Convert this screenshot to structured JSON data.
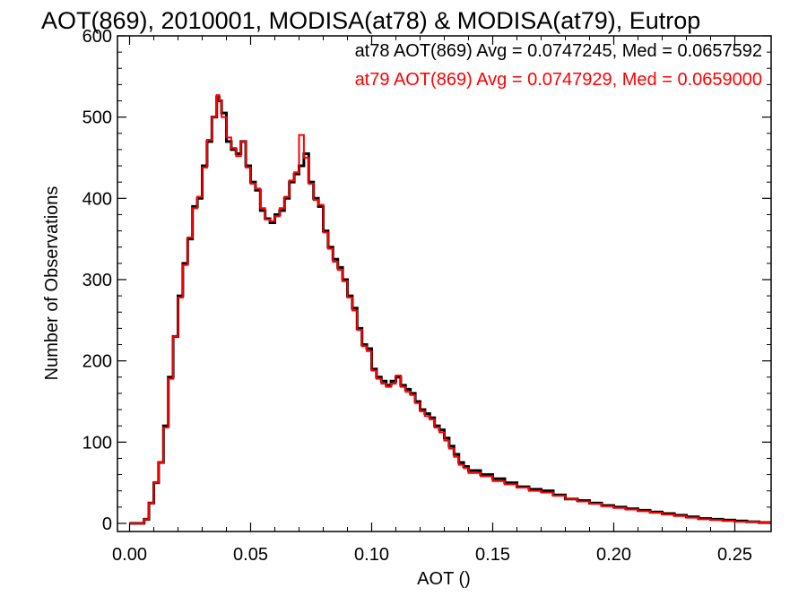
{
  "chart_data": {
    "type": "line",
    "title": "AOT(869), 2010001, MODISA(at78) & MODISA(at79), Eutrop",
    "xlabel": "AOT ()",
    "ylabel": "Number of Observations",
    "xlim": [
      -0.005,
      0.265
    ],
    "ylim": [
      -10,
      600
    ],
    "x_ticks": [
      "0.00",
      "0.05",
      "0.10",
      "0.15",
      "0.20",
      "0.25"
    ],
    "y_ticks": [
      "0",
      "100",
      "200",
      "300",
      "400",
      "500",
      "600"
    ],
    "step": "histogram",
    "annotations": [
      {
        "text": "at78 AOT(869) Avg = 0.0747245, Med = 0.0657592",
        "color": "#000000"
      },
      {
        "text": "at79 AOT(869) Avg = 0.0747929, Med = 0.0659000",
        "color": "#ff0000"
      }
    ],
    "series": [
      {
        "color": "#000000",
        "x": [
          0.0,
          0.005,
          0.006,
          0.008,
          0.01,
          0.012,
          0.014,
          0.016,
          0.018,
          0.02,
          0.022,
          0.024,
          0.026,
          0.028,
          0.03,
          0.032,
          0.034,
          0.036,
          0.037,
          0.038,
          0.04,
          0.042,
          0.044,
          0.046,
          0.048,
          0.05,
          0.052,
          0.054,
          0.056,
          0.058,
          0.06,
          0.062,
          0.064,
          0.066,
          0.068,
          0.07,
          0.072,
          0.074,
          0.076,
          0.078,
          0.08,
          0.082,
          0.084,
          0.086,
          0.088,
          0.09,
          0.092,
          0.094,
          0.096,
          0.098,
          0.1,
          0.102,
          0.104,
          0.106,
          0.108,
          0.11,
          0.112,
          0.114,
          0.116,
          0.118,
          0.12,
          0.122,
          0.124,
          0.126,
          0.128,
          0.13,
          0.132,
          0.134,
          0.136,
          0.138,
          0.14,
          0.145,
          0.15,
          0.155,
          0.16,
          0.165,
          0.17,
          0.175,
          0.18,
          0.185,
          0.19,
          0.195,
          0.2,
          0.205,
          0.21,
          0.215,
          0.22,
          0.225,
          0.23,
          0.235,
          0.24,
          0.245,
          0.25,
          0.255,
          0.26,
          0.265
        ],
        "values": [
          0,
          0,
          5,
          25,
          50,
          75,
          120,
          180,
          230,
          280,
          320,
          350,
          390,
          400,
          440,
          470,
          500,
          525,
          520,
          505,
          470,
          460,
          455,
          470,
          440,
          420,
          410,
          385,
          375,
          370,
          380,
          385,
          400,
          420,
          430,
          440,
          455,
          420,
          400,
          390,
          360,
          340,
          325,
          315,
          300,
          280,
          265,
          240,
          220,
          215,
          190,
          180,
          175,
          170,
          175,
          180,
          170,
          165,
          160,
          150,
          140,
          135,
          130,
          120,
          115,
          105,
          95,
          85,
          75,
          70,
          65,
          60,
          55,
          50,
          45,
          42,
          40,
          35,
          30,
          28,
          25,
          22,
          20,
          18,
          16,
          14,
          12,
          10,
          8,
          6,
          5,
          4,
          3,
          2,
          1,
          1
        ]
      },
      {
        "color": "#ff0000",
        "x": [
          0.0,
          0.005,
          0.006,
          0.008,
          0.01,
          0.012,
          0.014,
          0.016,
          0.018,
          0.02,
          0.022,
          0.024,
          0.026,
          0.028,
          0.03,
          0.032,
          0.034,
          0.036,
          0.037,
          0.038,
          0.04,
          0.042,
          0.044,
          0.046,
          0.048,
          0.05,
          0.052,
          0.054,
          0.056,
          0.058,
          0.06,
          0.062,
          0.064,
          0.066,
          0.068,
          0.07,
          0.072,
          0.074,
          0.076,
          0.078,
          0.08,
          0.082,
          0.084,
          0.086,
          0.088,
          0.09,
          0.092,
          0.094,
          0.096,
          0.098,
          0.1,
          0.102,
          0.104,
          0.106,
          0.108,
          0.11,
          0.112,
          0.114,
          0.116,
          0.118,
          0.12,
          0.122,
          0.124,
          0.126,
          0.128,
          0.13,
          0.132,
          0.134,
          0.136,
          0.138,
          0.14,
          0.145,
          0.15,
          0.155,
          0.16,
          0.165,
          0.17,
          0.175,
          0.18,
          0.185,
          0.19,
          0.195,
          0.2,
          0.205,
          0.21,
          0.215,
          0.22,
          0.225,
          0.23,
          0.235,
          0.24,
          0.245,
          0.25,
          0.255,
          0.26,
          0.265
        ],
        "values": [
          0,
          0,
          5,
          25,
          50,
          75,
          118,
          178,
          230,
          278,
          318,
          352,
          388,
          402,
          438,
          472,
          500,
          527,
          520,
          500,
          475,
          462,
          452,
          470,
          438,
          418,
          412,
          388,
          374,
          372,
          378,
          388,
          402,
          422,
          432,
          478,
          450,
          418,
          398,
          392,
          358,
          338,
          322,
          312,
          298,
          278,
          262,
          238,
          218,
          212,
          188,
          178,
          172,
          168,
          172,
          182,
          168,
          162,
          158,
          148,
          138,
          132,
          128,
          118,
          112,
          102,
          92,
          82,
          72,
          68,
          62,
          58,
          52,
          48,
          44,
          40,
          38,
          34,
          30,
          27,
          24,
          21,
          19,
          17,
          15,
          13,
          11,
          9,
          7,
          5,
          4,
          3,
          2,
          2,
          1,
          1
        ]
      }
    ]
  }
}
